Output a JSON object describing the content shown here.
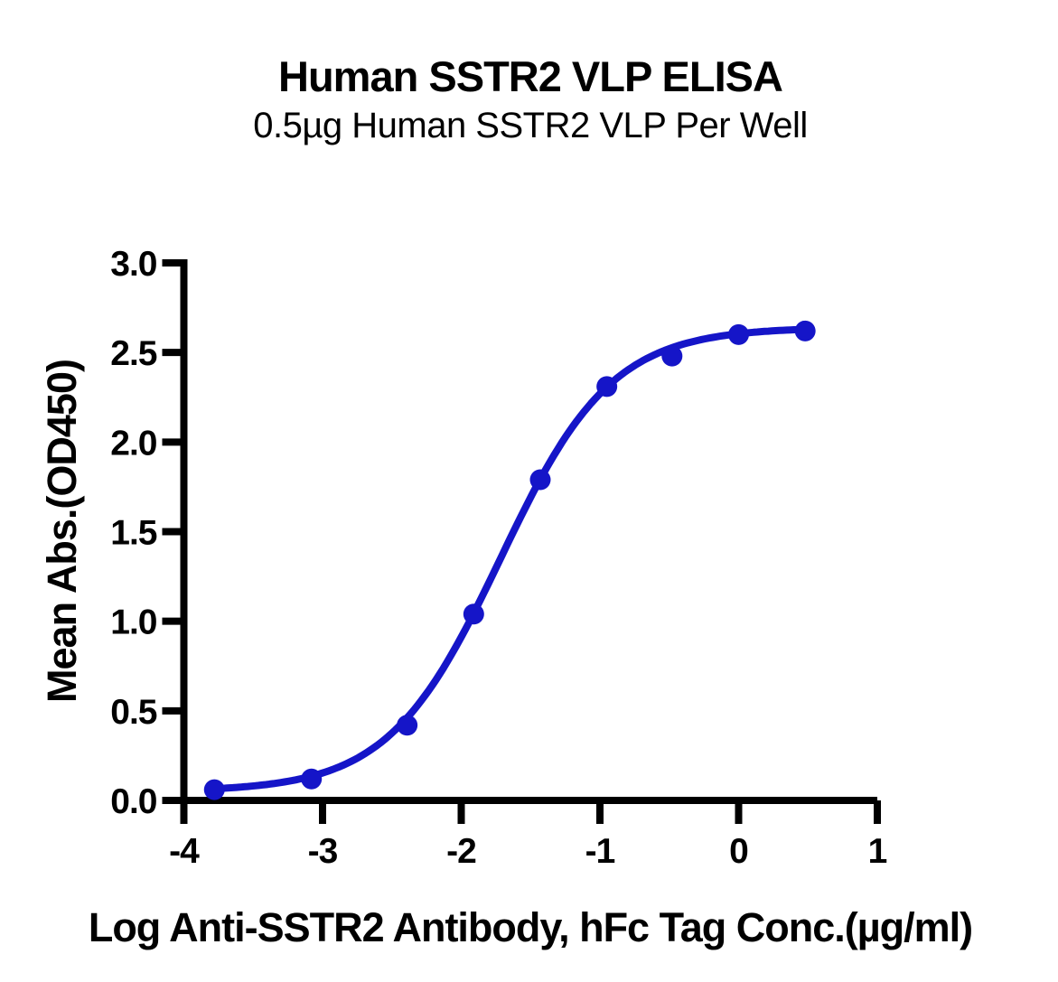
{
  "chart_data": {
    "type": "scatter",
    "title": "Human SSTR2 VLP ELISA",
    "subtitle": "0.5µg Human SSTR2 VLP Per Well",
    "xlabel": "Log Anti-SSTR2 Antibody, hFc Tag Conc.(µg/ml)",
    "ylabel": "Mean Abs.(OD450)",
    "x": [
      -3.78,
      -3.08,
      -2.39,
      -1.91,
      -1.43,
      -0.95,
      -0.48,
      0.0,
      0.48
    ],
    "y": [
      0.06,
      0.12,
      0.42,
      1.04,
      1.79,
      2.31,
      2.48,
      2.6,
      2.62
    ],
    "xlim": [
      -4,
      1
    ],
    "ylim": [
      0,
      3
    ],
    "x_ticks": [
      {
        "value": -4,
        "label": "-4"
      },
      {
        "value": -3,
        "label": "-3"
      },
      {
        "value": -2,
        "label": "-2"
      },
      {
        "value": -1,
        "label": "-1"
      },
      {
        "value": 0,
        "label": "0"
      },
      {
        "value": 1,
        "label": "1"
      }
    ],
    "y_ticks": [
      {
        "value": 0.0,
        "label": "0.0"
      },
      {
        "value": 0.5,
        "label": "0.5"
      },
      {
        "value": 1.0,
        "label": "1.0"
      },
      {
        "value": 1.5,
        "label": "1.5"
      },
      {
        "value": 2.0,
        "label": "2.0"
      },
      {
        "value": 2.5,
        "label": "2.5"
      },
      {
        "value": 3.0,
        "label": "3.0"
      }
    ],
    "grid": false,
    "legend": false,
    "marker": "circle",
    "curve_fit": {
      "model": "4PL",
      "bottom": 0.05,
      "top": 2.64,
      "log_ec50": -1.72,
      "hill": 1.08
    },
    "colors": {
      "curve": "#1515C8",
      "axis": "#000000",
      "text": "#000000"
    }
  }
}
